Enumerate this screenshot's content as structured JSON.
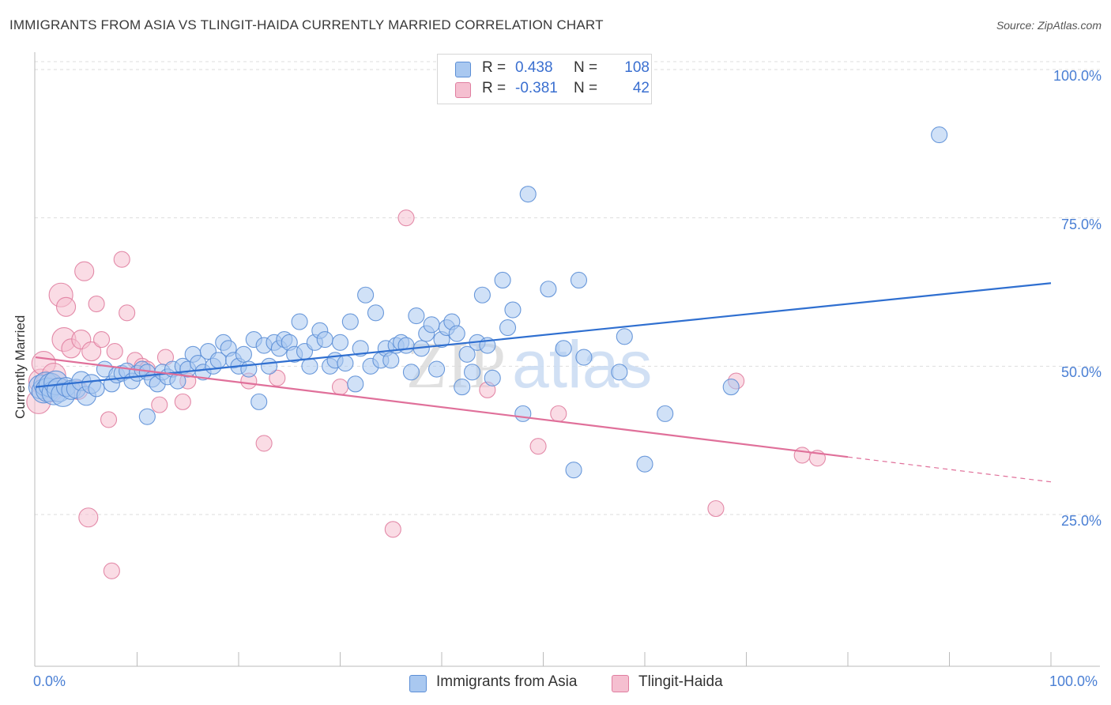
{
  "title": "IMMIGRANTS FROM ASIA VS TLINGIT-HAIDA CURRENTLY MARRIED CORRELATION CHART",
  "source": "Source: ZipAtlas.com",
  "watermark": {
    "zip": "ZIP",
    "atlas": "atlas"
  },
  "colors": {
    "blue_fill": "#a9c8f0",
    "blue_stroke": "#5b8ed6",
    "blue_line": "#2f6fd0",
    "pink_fill": "#f5bfd0",
    "pink_stroke": "#e07ea0",
    "pink_line": "#e0709a",
    "tick_text": "#4a7fd4",
    "grid": "#dddddd"
  },
  "legend_top": [
    {
      "r_label": "R =",
      "r_value": "0.438",
      "n_label": "N =",
      "n_value": "108"
    },
    {
      "r_label": "R =",
      "r_value": "-0.381",
      "n_label": "N =",
      "n_value": "42"
    }
  ],
  "chart_data": {
    "type": "scatter",
    "title": "IMMIGRANTS FROM ASIA VS TLINGIT-HAIDA CURRENTLY MARRIED CORRELATION CHART",
    "xlabel": "",
    "ylabel": "Currently Married",
    "xlim": [
      0,
      100
    ],
    "ylim": [
      0,
      105
    ],
    "x_tick_labels": [
      "0.0%",
      "100.0%"
    ],
    "y_ticks": [
      25,
      50,
      75,
      100
    ],
    "y_tick_labels": [
      "25.0%",
      "50.0%",
      "75.0%",
      "100.0%"
    ],
    "grid": true,
    "legend_position": "bottom",
    "series": [
      {
        "name": "Immigrants from Asia",
        "color": "#a9c8f0",
        "r": 0.438,
        "n": 108,
        "trend": {
          "x": [
            0,
            100
          ],
          "y": [
            46.5,
            64.0
          ],
          "dashed_from": null
        },
        "points": [
          [
            0.5,
            46.5
          ],
          [
            0.8,
            45.8
          ],
          [
            1.0,
            47.0
          ],
          [
            1.2,
            46.0
          ],
          [
            1.5,
            46.8
          ],
          [
            1.8,
            45.5
          ],
          [
            2.0,
            47.2
          ],
          [
            2.3,
            46.0
          ],
          [
            2.7,
            45.2
          ],
          [
            3.0,
            46.5
          ],
          [
            3.5,
            46.0
          ],
          [
            4.0,
            46.2
          ],
          [
            4.5,
            47.5
          ],
          [
            5.0,
            45.0
          ],
          [
            5.5,
            47.0
          ],
          [
            6.0,
            46.2
          ],
          [
            6.8,
            49.5
          ],
          [
            7.5,
            47.0
          ],
          [
            8.0,
            48.5
          ],
          [
            8.5,
            48.8
          ],
          [
            9.0,
            49.2
          ],
          [
            9.5,
            47.5
          ],
          [
            10.0,
            48.8
          ],
          [
            10.5,
            49.5
          ],
          [
            11.0,
            49.0
          ],
          [
            11.5,
            47.8
          ],
          [
            12.0,
            47.0
          ],
          [
            12.5,
            49.0
          ],
          [
            13.0,
            48.2
          ],
          [
            13.5,
            49.5
          ],
          [
            14.0,
            47.5
          ],
          [
            14.5,
            50.0
          ],
          [
            15.0,
            49.5
          ],
          [
            15.5,
            52.0
          ],
          [
            16.0,
            50.5
          ],
          [
            16.5,
            49.0
          ],
          [
            17.0,
            52.5
          ],
          [
            17.5,
            50.0
          ],
          [
            18.0,
            51.0
          ],
          [
            18.5,
            54.0
          ],
          [
            19.0,
            53.0
          ],
          [
            19.5,
            51.0
          ],
          [
            20.0,
            50.0
          ],
          [
            20.5,
            52.0
          ],
          [
            21.0,
            49.5
          ],
          [
            21.5,
            54.5
          ],
          [
            22.0,
            44.0
          ],
          [
            22.5,
            53.5
          ],
          [
            23.0,
            50.0
          ],
          [
            23.5,
            54.0
          ],
          [
            24.0,
            53.0
          ],
          [
            24.5,
            54.5
          ],
          [
            25.0,
            54.0
          ],
          [
            25.5,
            52.0
          ],
          [
            26.0,
            57.5
          ],
          [
            26.5,
            52.5
          ],
          [
            27.0,
            50.0
          ],
          [
            27.5,
            54.0
          ],
          [
            28.0,
            56.0
          ],
          [
            28.5,
            54.5
          ],
          [
            29.0,
            50.0
          ],
          [
            29.5,
            51.0
          ],
          [
            30.0,
            54.0
          ],
          [
            30.5,
            50.5
          ],
          [
            31.0,
            57.5
          ],
          [
            31.5,
            47.0
          ],
          [
            32.0,
            53.0
          ],
          [
            32.5,
            62.0
          ],
          [
            33.0,
            50.0
          ],
          [
            33.5,
            59.0
          ],
          [
            34.0,
            51.0
          ],
          [
            34.5,
            53.0
          ],
          [
            35.0,
            51.0
          ],
          [
            35.5,
            53.5
          ],
          [
            36.0,
            54.0
          ],
          [
            36.5,
            53.5
          ],
          [
            37.0,
            49.0
          ],
          [
            37.5,
            58.5
          ],
          [
            38.0,
            53.0
          ],
          [
            38.5,
            55.5
          ],
          [
            39.0,
            57.0
          ],
          [
            39.5,
            49.5
          ],
          [
            40.0,
            54.5
          ],
          [
            40.5,
            56.5
          ],
          [
            41.0,
            57.5
          ],
          [
            41.5,
            55.5
          ],
          [
            42.0,
            46.5
          ],
          [
            42.5,
            52.0
          ],
          [
            43.0,
            49.0
          ],
          [
            43.5,
            54.0
          ],
          [
            44.0,
            62.0
          ],
          [
            44.5,
            53.5
          ],
          [
            45.0,
            48.0
          ],
          [
            46.0,
            64.5
          ],
          [
            46.5,
            56.5
          ],
          [
            47.0,
            59.5
          ],
          [
            48.0,
            42.0
          ],
          [
            48.5,
            79.0
          ],
          [
            50.5,
            63.0
          ],
          [
            52.0,
            53.0
          ],
          [
            53.0,
            32.5
          ],
          [
            53.5,
            64.5
          ],
          [
            54.0,
            51.5
          ],
          [
            57.5,
            49.0
          ],
          [
            58.0,
            55.0
          ],
          [
            60.0,
            33.5
          ],
          [
            62.0,
            42.0
          ],
          [
            68.5,
            46.5
          ],
          [
            89.0,
            89.0
          ],
          [
            11.0,
            41.5
          ]
        ],
        "sizes": "larger circles near x=0 indicate more observations"
      },
      {
        "name": "Tlingit-Haida",
        "color": "#f5bfd0",
        "r": -0.381,
        "n": 42,
        "trend": {
          "x": [
            0,
            100
          ],
          "y": [
            51.5,
            30.5
          ],
          "dashed_from": 80
        },
        "points": [
          [
            0.3,
            44.0
          ],
          [
            0.5,
            47.5
          ],
          [
            0.8,
            50.5
          ],
          [
            1.2,
            47.0
          ],
          [
            1.5,
            46.0
          ],
          [
            1.8,
            48.5
          ],
          [
            2.5,
            62.0
          ],
          [
            2.8,
            54.5
          ],
          [
            3.0,
            60.0
          ],
          [
            3.5,
            53.0
          ],
          [
            4.2,
            46.0
          ],
          [
            4.5,
            54.5
          ],
          [
            4.8,
            66.0
          ],
          [
            5.2,
            24.5
          ],
          [
            5.5,
            52.5
          ],
          [
            6.0,
            60.5
          ],
          [
            6.5,
            54.5
          ],
          [
            7.2,
            41.0
          ],
          [
            7.5,
            15.5
          ],
          [
            7.8,
            52.5
          ],
          [
            8.5,
            68.0
          ],
          [
            9.0,
            59.0
          ],
          [
            9.8,
            51.0
          ],
          [
            10.5,
            50.0
          ],
          [
            11.0,
            49.5
          ],
          [
            12.2,
            43.5
          ],
          [
            12.8,
            51.5
          ],
          [
            14.5,
            44.0
          ],
          [
            15.0,
            47.5
          ],
          [
            21.0,
            47.5
          ],
          [
            22.5,
            37.0
          ],
          [
            23.8,
            48.0
          ],
          [
            30.0,
            46.5
          ],
          [
            35.2,
            22.5
          ],
          [
            36.5,
            75.0
          ],
          [
            44.5,
            46.0
          ],
          [
            49.5,
            36.5
          ],
          [
            51.5,
            42.0
          ],
          [
            67.0,
            26.0
          ],
          [
            69.0,
            47.5
          ],
          [
            75.5,
            35.0
          ],
          [
            77.0,
            34.5
          ]
        ]
      }
    ]
  }
}
